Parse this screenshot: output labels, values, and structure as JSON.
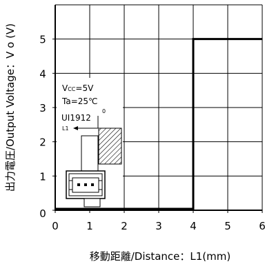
{
  "chart_data": {
    "type": "line",
    "series": [
      {
        "x": [
          0,
          4,
          4,
          6
        ],
        "y": [
          0,
          0,
          5,
          5
        ]
      }
    ],
    "xlabel": "移動距離/Distance：L1(mm)",
    "ylabel": "出力電圧/Output Voltage：V o (V)",
    "xlim": [
      0,
      6
    ],
    "ylim": [
      0,
      6
    ],
    "xticks": [
      0,
      1,
      2,
      3,
      4,
      5,
      6
    ],
    "yticks": [
      0,
      1,
      2,
      3,
      4,
      5
    ],
    "grid": true,
    "line_color": "#000000",
    "grid_color": "#000000"
  },
  "annotation": {
    "vcc": {
      "main": "V",
      "sub": "CC",
      "rest": "=5V"
    },
    "ta": "Ta=25℃",
    "part": "UI1912",
    "origin": "0",
    "distance": "L1"
  }
}
